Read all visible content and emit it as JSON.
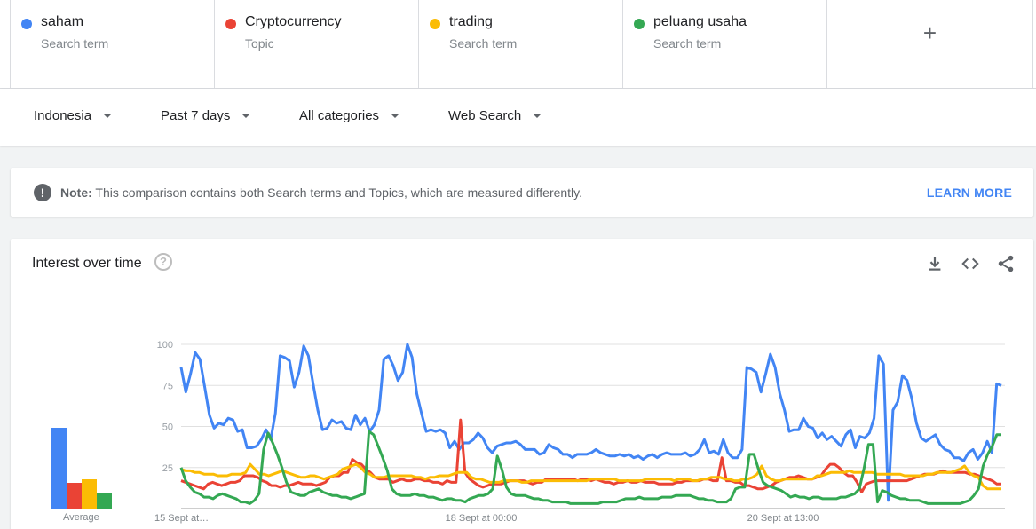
{
  "terms": [
    {
      "name": "saham",
      "type": "Search term",
      "color": "#4285f4"
    },
    {
      "name": "Cryptocurrency",
      "type": "Topic",
      "color": "#ea4335"
    },
    {
      "name": "trading",
      "type": "Search term",
      "color": "#fbbc04"
    },
    {
      "name": "peluang usaha",
      "type": "Search term",
      "color": "#34a853"
    }
  ],
  "add_label": "+",
  "filters": {
    "region": "Indonesia",
    "time": "Past 7 days",
    "category": "All categories",
    "search_type": "Web Search"
  },
  "note": {
    "prefix": "Note:",
    "text": " This comparison contains both Search terms and Topics, which are measured differently.",
    "link": "LEARN MORE"
  },
  "card": {
    "title": "Interest over time",
    "help_icon": "help-circle-icon",
    "download_icon": "download-icon",
    "embed_icon": "embed-code-icon",
    "share_icon": "share-icon"
  },
  "average": {
    "label": "Average",
    "values": [
      50,
      16,
      18,
      10
    ]
  },
  "chart_data": {
    "type": "line",
    "ylim": [
      0,
      100
    ],
    "yticks": [
      "100",
      "75",
      "50",
      "25"
    ],
    "xticks": [
      "15 Sept at…",
      "18 Sept at 00:00",
      "20 Sept at 13:00"
    ],
    "grid": true,
    "series": [
      {
        "name": "saham",
        "color": "#4285f4",
        "values": [
          86,
          71,
          82,
          95,
          91,
          74,
          57,
          49,
          52,
          51,
          55,
          54,
          47,
          48,
          37,
          37,
          38,
          42,
          48,
          42,
          58,
          93,
          92,
          90,
          74,
          83,
          99,
          93,
          76,
          60,
          48,
          49,
          54,
          52,
          53,
          49,
          48,
          57,
          51,
          55,
          47,
          51,
          60,
          91,
          93,
          87,
          78,
          83,
          100,
          92,
          70,
          58,
          47,
          48,
          47,
          48,
          46,
          37,
          41,
          36,
          40,
          40,
          42,
          46,
          43,
          37,
          34,
          38,
          39,
          40,
          40,
          41,
          39,
          36,
          36,
          36,
          33,
          34,
          39,
          37,
          36,
          33,
          33,
          31,
          33,
          33,
          33,
          34,
          36,
          34,
          33,
          32,
          32,
          33,
          32,
          33,
          31,
          32,
          30,
          32,
          33,
          31,
          33,
          34,
          33,
          33,
          33,
          34,
          32,
          33,
          36,
          42,
          34,
          35,
          33,
          42,
          34,
          31,
          31,
          36,
          86,
          85,
          83,
          71,
          82,
          94,
          86,
          70,
          60,
          47,
          48,
          48,
          55,
          50,
          49,
          43,
          46,
          42,
          44,
          41,
          38,
          45,
          48,
          37,
          44,
          43,
          46,
          55,
          93,
          88,
          5,
          60,
          65,
          81,
          78,
          67,
          52,
          43,
          41,
          43,
          45,
          39,
          36,
          35,
          31,
          31,
          29,
          34,
          36,
          30,
          34,
          41,
          34,
          76,
          75
        ]
      },
      {
        "name": "Cryptocurrency",
        "color": "#ea4335",
        "values": [
          17,
          16,
          15,
          14,
          13,
          12,
          15,
          16,
          15,
          14,
          15,
          16,
          16,
          17,
          20,
          20,
          20,
          19,
          17,
          16,
          14,
          14,
          13,
          14,
          14,
          15,
          16,
          15,
          15,
          15,
          14,
          15,
          16,
          19,
          20,
          20,
          22,
          22,
          30,
          28,
          27,
          24,
          22,
          19,
          18,
          18,
          18,
          16,
          17,
          18,
          17,
          17,
          18,
          18,
          17,
          17,
          16,
          16,
          15,
          17,
          16,
          16,
          54,
          22,
          18,
          16,
          14,
          13,
          14,
          15,
          15,
          15,
          16,
          17,
          17,
          17,
          17,
          16,
          15,
          16,
          16,
          18,
          18,
          18,
          18,
          18,
          18,
          18,
          17,
          18,
          18,
          17,
          18,
          17,
          16,
          16,
          15,
          16,
          16,
          17,
          16,
          16,
          17,
          16,
          16,
          16,
          15,
          15,
          15,
          15,
          16,
          16,
          17,
          17,
          17,
          17,
          18,
          18,
          17,
          17,
          31,
          17,
          17,
          16,
          16,
          14,
          14,
          13,
          12,
          12,
          13,
          14,
          16,
          17,
          18,
          19,
          19,
          20,
          19,
          18,
          18,
          19,
          20,
          24,
          27,
          27,
          25,
          22,
          20,
          20,
          16,
          10,
          15,
          16,
          17,
          17,
          17,
          17,
          17,
          17,
          17,
          17,
          18,
          19,
          20,
          21,
          21,
          21,
          22,
          23,
          22,
          22,
          22,
          22,
          22,
          21,
          21,
          20,
          19,
          18,
          17,
          15,
          15
        ]
      },
      {
        "name": "trading",
        "color": "#fbbc04",
        "values": [
          24,
          23,
          23,
          22,
          22,
          21,
          21,
          21,
          20,
          20,
          20,
          21,
          21,
          21,
          22,
          27,
          24,
          21,
          21,
          20,
          21,
          22,
          23,
          22,
          21,
          20,
          19,
          19,
          20,
          20,
          19,
          18,
          19,
          20,
          21,
          24,
          25,
          26,
          27,
          25,
          22,
          21,
          19,
          19,
          19,
          20,
          20,
          20,
          20,
          20,
          20,
          19,
          19,
          18,
          19,
          19,
          20,
          20,
          20,
          21,
          22,
          22,
          22,
          19,
          18,
          18,
          17,
          16,
          16,
          16,
          17,
          17,
          17,
          17,
          16,
          16,
          17,
          17,
          17,
          17,
          17,
          17,
          17,
          17,
          17,
          17,
          17,
          17,
          17,
          18,
          18,
          18,
          18,
          18,
          18,
          17,
          17,
          17,
          17,
          17,
          17,
          18,
          18,
          18,
          18,
          18,
          18,
          17,
          18,
          18,
          18,
          17,
          17,
          18,
          18,
          19,
          19,
          19,
          18,
          18,
          17,
          17,
          18,
          18,
          19,
          21,
          26,
          20,
          18,
          17,
          17,
          18,
          18,
          18,
          18,
          18,
          18,
          18,
          20,
          20,
          21,
          22,
          22,
          22,
          22,
          23,
          22,
          22,
          22,
          22,
          22,
          21,
          21,
          21,
          21,
          21,
          21,
          20,
          20,
          20,
          20,
          20,
          21,
          21,
          22,
          22,
          22,
          22,
          23,
          24,
          26,
          22,
          20,
          19,
          14,
          12,
          12,
          12,
          12
        ]
      },
      {
        "name": "peluang usaha",
        "color": "#34a853",
        "values": [
          25,
          17,
          13,
          10,
          9,
          7,
          7,
          6,
          8,
          9,
          8,
          7,
          6,
          4,
          4,
          3,
          5,
          9,
          36,
          46,
          40,
          33,
          25,
          16,
          10,
          9,
          8,
          8,
          10,
          11,
          12,
          10,
          9,
          8,
          8,
          7,
          7,
          6,
          7,
          8,
          9,
          47,
          45,
          38,
          31,
          23,
          12,
          9,
          8,
          8,
          8,
          9,
          8,
          8,
          7,
          7,
          6,
          5,
          6,
          6,
          5,
          5,
          4,
          6,
          7,
          8,
          8,
          9,
          12,
          32,
          24,
          13,
          9,
          8,
          8,
          8,
          7,
          6,
          6,
          5,
          5,
          4,
          4,
          4,
          4,
          3,
          3,
          3,
          3,
          3,
          3,
          3,
          4,
          4,
          4,
          4,
          5,
          6,
          6,
          6,
          7,
          6,
          6,
          6,
          6,
          7,
          7,
          7,
          8,
          8,
          8,
          8,
          7,
          6,
          6,
          5,
          5,
          4,
          4,
          4,
          6,
          12,
          13,
          13,
          33,
          33,
          24,
          16,
          14,
          13,
          12,
          11,
          9,
          7,
          8,
          7,
          7,
          6,
          7,
          7,
          6,
          6,
          6,
          6,
          7,
          7,
          8,
          9,
          12,
          24,
          39,
          39,
          4,
          11,
          10,
          8,
          7,
          6,
          6,
          5,
          5,
          5,
          4,
          3,
          3,
          3,
          3,
          3,
          3,
          3,
          3,
          4,
          5,
          8,
          12,
          26,
          33,
          38,
          45,
          45
        ]
      }
    ]
  }
}
